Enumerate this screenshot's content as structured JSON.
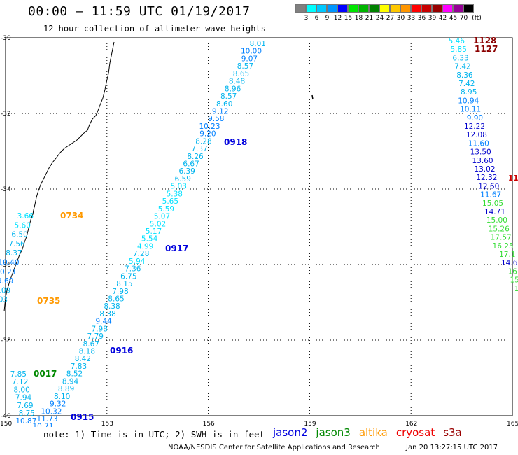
{
  "header": {
    "title": "00:00 — 11:59 UTC 01/19/2017",
    "subtitle": "12 hour collection of altimeter wave heights"
  },
  "color_scale": {
    "unit": "(ft)",
    "ticks": [
      "3",
      "6",
      "9",
      "12",
      "15",
      "18",
      "21",
      "24",
      "27",
      "30",
      "33",
      "36",
      "39",
      "42",
      "45",
      "70"
    ],
    "colors": [
      "#808080",
      "#00ffff",
      "#00c8ff",
      "#0096ff",
      "#0000ff",
      "#00e600",
      "#00b400",
      "#008200",
      "#ffff00",
      "#ffc800",
      "#ff9600",
      "#ff0000",
      "#c80000",
      "#960000",
      "#ff00ff",
      "#960096",
      "#000000"
    ]
  },
  "map": {
    "lon_labels": [
      "150",
      "153",
      "156",
      "159",
      "162",
      "165"
    ],
    "lat_labels": [
      "-30",
      "-32",
      "-34",
      "-36",
      "-38",
      "-40"
    ]
  },
  "pass_labels": [
    {
      "text": "0918",
      "sat": "jason2"
    },
    {
      "text": "0917",
      "sat": "jason2"
    },
    {
      "text": "0916",
      "sat": "jason2"
    },
    {
      "text": "0915",
      "sat": "jason2"
    },
    {
      "text": "0734",
      "sat": "altika"
    },
    {
      "text": "0735",
      "sat": "altika"
    },
    {
      "text": "0017",
      "sat": "jason3"
    },
    {
      "text": "1128",
      "sat": "cryosat"
    },
    {
      "text": "1127",
      "sat": "cryosat"
    }
  ],
  "tracks": {
    "t1_values": [
      "8.01",
      "10.00",
      "9.07",
      "8.57",
      "8.65",
      "8.48",
      "8.96",
      "8.57",
      "8.60",
      "9.12",
      "9.58",
      "10.23",
      "9.20",
      "8.28",
      "7.37",
      "8.26",
      "6.67",
      "6.39",
      "6.59",
      "5.03",
      "5.38",
      "5.65",
      "5.59",
      "5.07",
      "5.02",
      "5.17",
      "5.54",
      "4.99",
      "7.28",
      "5.94",
      "7.36",
      "6.75",
      "8.15",
      "7.98",
      "8.65",
      "8.38",
      "8.38",
      "9.44",
      "7.98",
      "7.79",
      "8.67",
      "8.18",
      "8.42",
      "7.83",
      "8.52",
      "8.94",
      "8.89",
      "8.10",
      "9.32",
      "10.32",
      "11.73",
      "10.71",
      "10.84"
    ],
    "t2_values": [
      "3.66",
      "5.60",
      "6.50",
      "7.56",
      "8.37",
      "10.40",
      "10.21",
      "9.69",
      "6.09",
      "6.03"
    ],
    "t3_values": [
      "7.85",
      "7.12",
      "8.00",
      "7.94",
      "7.69",
      "8.75",
      "10.87"
    ],
    "t4_values": [
      "5.46",
      "5.85",
      "6.33",
      "7.42",
      "8.36",
      "7.42",
      "8.95",
      "10.94",
      "10.11",
      "9.90",
      "12.22",
      "12.08",
      "11.60",
      "13.50",
      "13.60",
      "13.02",
      "12.32",
      "12.60",
      "11.67",
      "15.05",
      "14.71",
      "15.00",
      "15.26",
      "17.57",
      "16.25",
      "17.1",
      "14.6",
      "16.",
      "15.",
      "15"
    ],
    "t4_extra": "11"
  },
  "footer": {
    "note": "note: 1) Time is in UTC; 2) SWH is in feet",
    "credit": "NOAA/NESDIS Center for Satellite Applications and Research",
    "timestamp": "Jan 20 13:27:15 UTC 2017",
    "satellites": [
      {
        "name": "jason2",
        "color": "#0000dd"
      },
      {
        "name": "jason3",
        "color": "#008800"
      },
      {
        "name": "altika",
        "color": "#ff9900"
      },
      {
        "name": "cryosat",
        "color": "#ee0000"
      },
      {
        "name": "s3a",
        "color": "#990000"
      }
    ]
  }
}
